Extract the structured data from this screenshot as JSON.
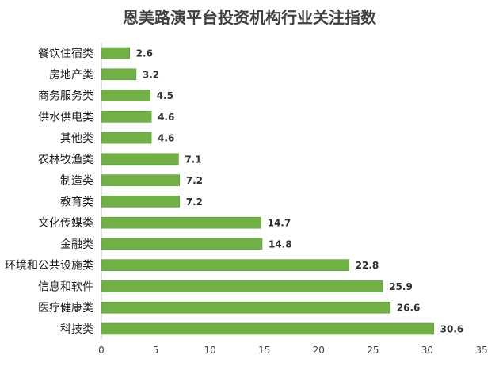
{
  "chart_data": {
    "type": "bar",
    "orientation": "horizontal",
    "title": "恩美路演平台投资机构行业关注指数",
    "categories": [
      "餐饮住宿类",
      "房地产类",
      "商务服务类",
      "供水供电类",
      "其他类",
      "农林牧渔类",
      "制造类",
      "教育类",
      "文化传媒类",
      "金融类",
      "环境和公共设施类",
      "信息和软件",
      "医疗健康类",
      "科技类"
    ],
    "values": [
      2.6,
      3.2,
      4.5,
      4.6,
      4.6,
      7.1,
      7.2,
      7.2,
      14.7,
      14.8,
      22.8,
      25.9,
      26.6,
      30.6
    ],
    "value_labels": [
      "2.6",
      "3.2",
      "4.5",
      "4.6",
      "4.6",
      "7.1",
      "7.2",
      "7.2",
      "14.7",
      "14.8",
      "22.8",
      "25.9",
      "26.6",
      "30.6"
    ],
    "xlim": [
      0,
      35
    ],
    "xticks": [
      "0",
      "5",
      "10",
      "15",
      "20",
      "25",
      "30",
      "35"
    ],
    "xlabel": "",
    "ylabel": "",
    "grid": false,
    "legend": "none",
    "bar_color": "#71b044",
    "bar_edge_color": "#5a9a32"
  }
}
